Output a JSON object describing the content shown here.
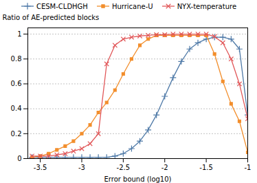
{
  "chart_data": {
    "type": "line",
    "title": "",
    "xlabel": "Error bound (log10)",
    "ylabel": "Ratio of AE-predicted blocks",
    "x": [
      -3.6,
      -3.5,
      -3.4,
      -3.3,
      -3.2,
      -3.1,
      -3.0,
      -2.9,
      -2.8,
      -2.7,
      -2.6,
      -2.5,
      -2.4,
      -2.3,
      -2.2,
      -2.1,
      -2.0,
      -1.9,
      -1.8,
      -1.7,
      -1.6,
      -1.5,
      -1.4,
      -1.3,
      -1.2,
      -1.1,
      -1.0
    ],
    "series": [
      {
        "name": "CESM-CLDHGH",
        "marker": "plus",
        "values": [
          0.01,
          0.01,
          0.01,
          0.01,
          0.01,
          0.01,
          0.01,
          0.01,
          0.01,
          0.01,
          0.02,
          0.04,
          0.08,
          0.14,
          0.23,
          0.35,
          0.5,
          0.65,
          0.78,
          0.88,
          0.93,
          0.96,
          0.975,
          0.975,
          0.96,
          0.88,
          0.35
        ]
      },
      {
        "name": "Hurricane-U",
        "marker": "square",
        "values": [
          0.01,
          0.02,
          0.04,
          0.07,
          0.1,
          0.14,
          0.2,
          0.27,
          0.37,
          0.45,
          0.55,
          0.68,
          0.8,
          0.91,
          0.96,
          0.99,
          0.99,
          0.99,
          0.99,
          0.99,
          0.99,
          0.99,
          0.84,
          0.62,
          0.44,
          0.3,
          0.05
        ]
      },
      {
        "name": "NYX-temperature",
        "marker": "times",
        "values": [
          0.02,
          0.02,
          0.02,
          0.03,
          0.04,
          0.06,
          0.08,
          0.12,
          0.2,
          0.76,
          0.91,
          0.96,
          0.975,
          0.985,
          0.99,
          0.995,
          0.995,
          1.0,
          1.0,
          1.0,
          1.0,
          1.0,
          0.98,
          0.93,
          0.8,
          0.6,
          0.32
        ]
      }
    ],
    "xlim": [
      -3.65,
      -1.0
    ],
    "xticks": [
      -3.5,
      -3,
      -2.5,
      -2,
      -1.5,
      -1
    ],
    "ylim": [
      0,
      1.05
    ],
    "yticks": [
      0,
      0.2,
      0.4,
      0.6,
      0.8,
      1
    ],
    "grid": true,
    "legend": "top"
  }
}
